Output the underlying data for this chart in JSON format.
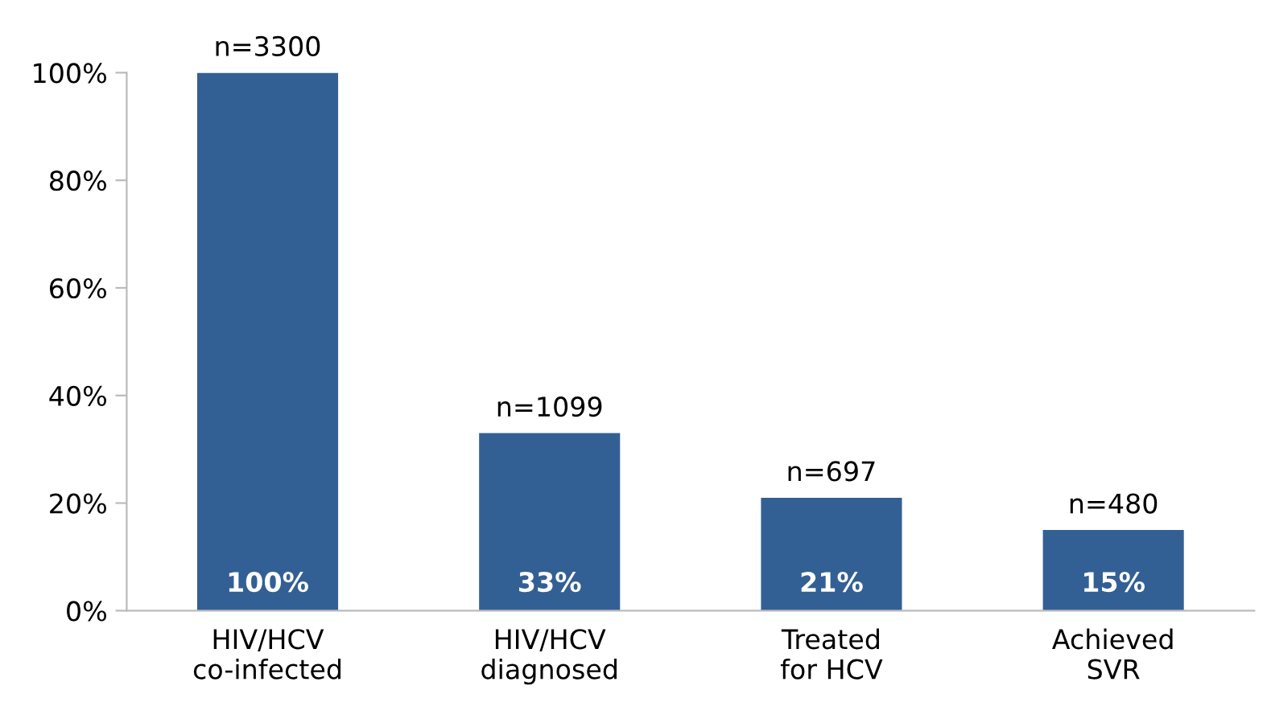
{
  "chart_data": {
    "type": "bar",
    "categories": [
      "HIV/HCV\nco-infected",
      "HIV/HCV\ndiagnosed",
      "Treated\nfor HCV",
      "Achieved\nSVR"
    ],
    "values": [
      100,
      33,
      21,
      15
    ],
    "color": "#336094",
    "value_labels": [
      "100%",
      "33%",
      "21%",
      "15%"
    ],
    "annotations": [
      {
        "text": "n=3300",
        "x": "HIV/HCV\nco-infected",
        "y": 100
      },
      {
        "text": "n=1099",
        "x": "HIV/HCV\ndiagnosed",
        "y": 33
      },
      {
        "text": "n=697",
        "x": "Treated\nfor HCV",
        "y": 21
      },
      {
        "text": "n=480",
        "x": "Achieved\nSVR",
        "y": 15
      }
    ],
    "ylim": [
      0,
      100
    ],
    "yticks": [
      {
        "value": 0,
        "label": "0%"
      },
      {
        "value": 20,
        "label": "20%"
      },
      {
        "value": 40,
        "label": "40%"
      },
      {
        "value": 60,
        "label": "60%"
      },
      {
        "value": 80,
        "label": "80%"
      },
      {
        "value": 100,
        "label": "100%"
      }
    ],
    "grid": false,
    "legend": false
  }
}
